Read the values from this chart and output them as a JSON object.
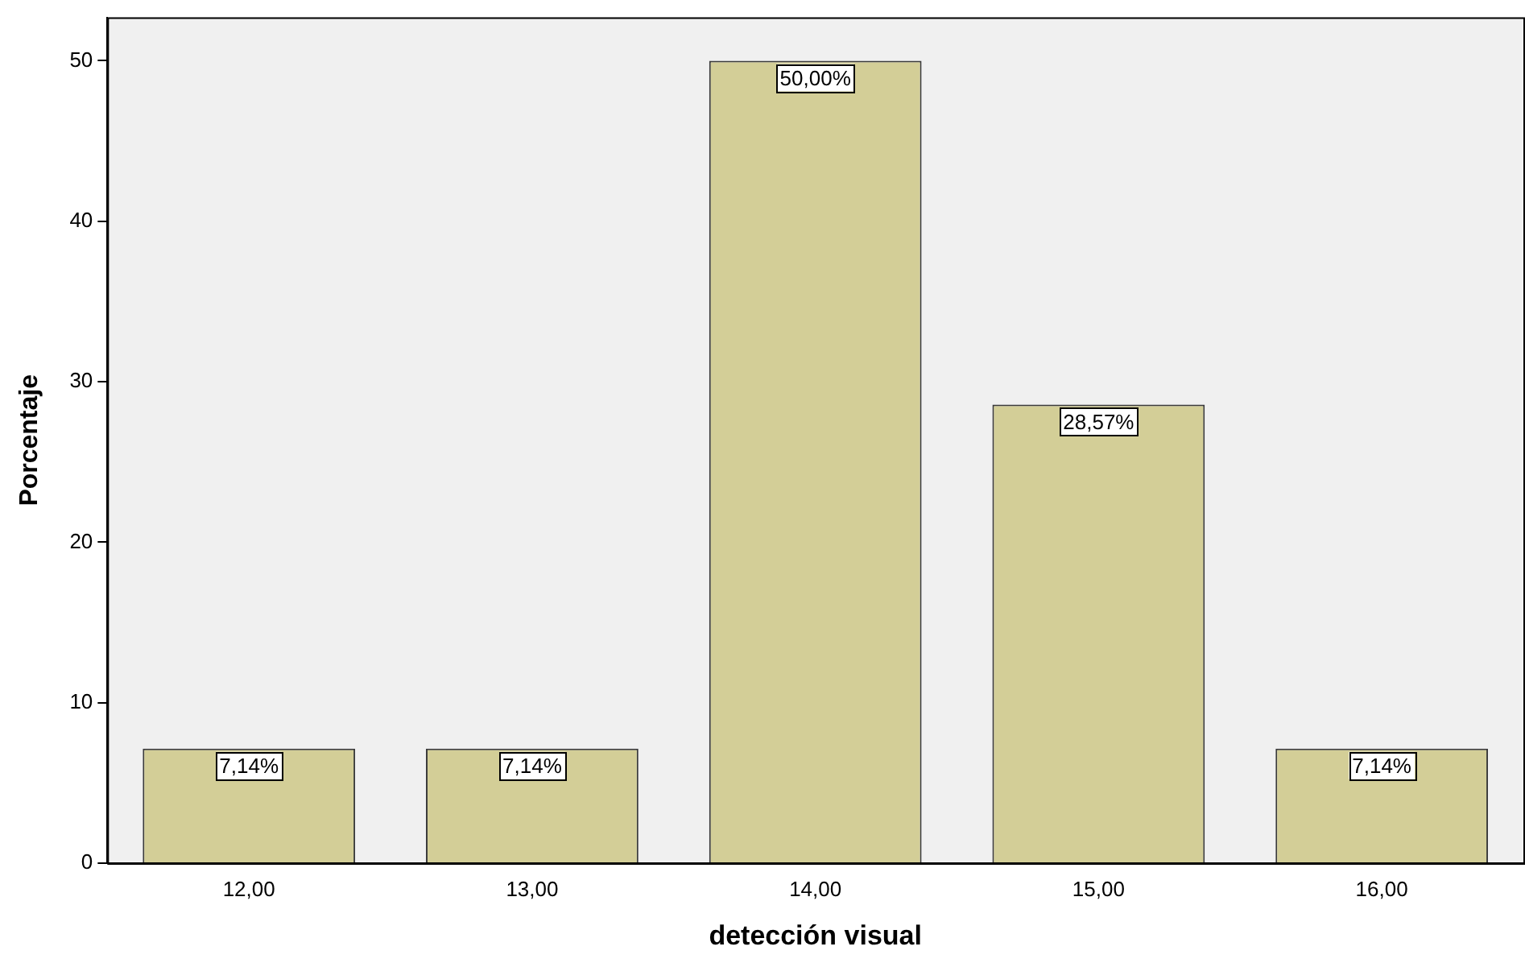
{
  "chart_data": {
    "type": "bar",
    "xlabel": "detección visual",
    "ylabel": "Porcentaje",
    "categories": [
      "12,00",
      "13,00",
      "14,00",
      "15,00",
      "16,00"
    ],
    "values": [
      7.14,
      7.14,
      50,
      28.57,
      7.14
    ],
    "value_labels": [
      "7,14%",
      "7,14%",
      "50,00%",
      "28,57%",
      "7,14%"
    ],
    "color": "#d3ce97",
    "ylim": [
      0,
      52.7
    ],
    "yticks": [
      0,
      10,
      20,
      30,
      40,
      50
    ],
    "grid": false,
    "legend": false
  }
}
